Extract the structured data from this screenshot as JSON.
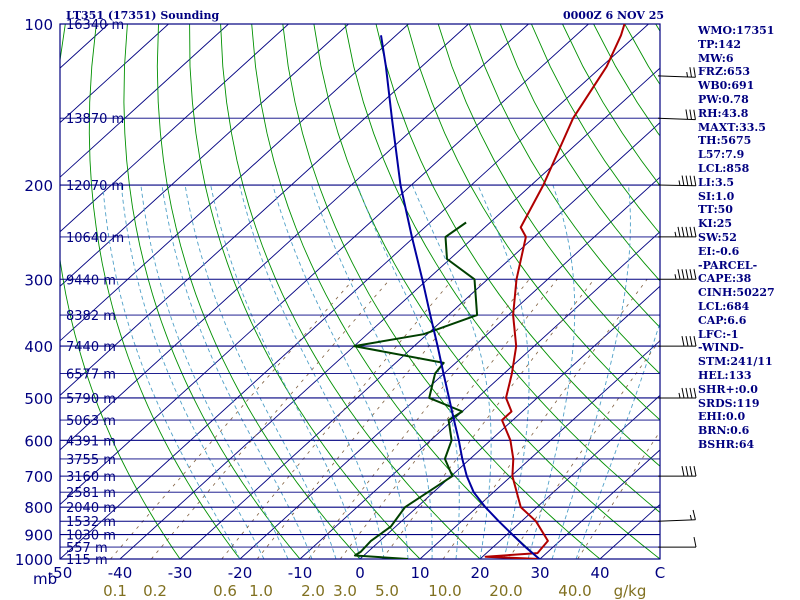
{
  "header": {
    "station": "LT351 (17351) Sounding",
    "datetime": "0000Z  6 NOV 25"
  },
  "stats": [
    "WMO:17351",
    "TP:142",
    "MW:6",
    "FRZ:653",
    "WB0:691",
    "PW:0.78",
    "RH:43.8",
    "MAXT:33.5",
    "TH:5675",
    "L57:7.9",
    "LCL:858",
    "LI:3.5",
    "SI:1.0",
    "TT:50",
    "KI:25",
    "SW:52",
    "EI:-0.6",
    "-PARCEL-",
    "CAPE:38",
    "CINH:50227",
    "LCL:684",
    "CAP:6.6",
    "LFC:-1",
    "-WIND-",
    "STM:241/11",
    "HEL:133",
    "SHR+:0.0",
    "SRDS:119",
    "EHI:0.0",
    "BRN:0.6",
    "BSHR:64"
  ],
  "chart_data": {
    "type": "skew-t",
    "x_unit_label": "mb",
    "mixing_ratio_unit": "g/kg",
    "temperature_ticks": [
      "-50",
      "-40",
      "-30",
      "-20",
      "-10",
      "0",
      "10",
      "20",
      "30",
      "40",
      "C"
    ],
    "temperature_range_c": [
      -50,
      50
    ],
    "mixing_ratio_ticks": [
      "0.1",
      "0.2",
      "0.6",
      "1.0",
      "2.0",
      "3.0",
      "5.0",
      "10.0",
      "20.0",
      "40.0"
    ],
    "pressure_labels": [
      "100",
      "200",
      "300",
      "400",
      "500",
      "600",
      "700",
      "800",
      "900",
      "1000"
    ],
    "pressure_range_mb": [
      100,
      1000
    ],
    "height_levels": [
      {
        "p": 100,
        "label": "16340 m"
      },
      {
        "p": 150,
        "label": "13870 m"
      },
      {
        "p": 200,
        "label": "12070 m"
      },
      {
        "p": 250,
        "label": "10640 m"
      },
      {
        "p": 300,
        "label": "9440 m"
      },
      {
        "p": 350,
        "label": "8382 m"
      },
      {
        "p": 400,
        "label": "7440 m"
      },
      {
        "p": 450,
        "label": "6577 m"
      },
      {
        "p": 500,
        "label": "5790 m"
      },
      {
        "p": 550,
        "label": "5063 m"
      },
      {
        "p": 600,
        "label": "4391 m"
      },
      {
        "p": 650,
        "label": "3755 m"
      },
      {
        "p": 700,
        "label": "3160 m"
      },
      {
        "p": 750,
        "label": "2581 m"
      },
      {
        "p": 800,
        "label": "2040 m"
      },
      {
        "p": 850,
        "label": "1532 m"
      },
      {
        "p": 900,
        "label": "1030 m"
      },
      {
        "p": 950,
        "label": "557 m"
      },
      {
        "p": 1000,
        "label": "115 m"
      }
    ],
    "series": [
      {
        "role": "temperature",
        "color": "#b00000",
        "points": [
          [
            1000,
            29.9
          ],
          [
            990,
            20.5
          ],
          [
            975,
            28.5
          ],
          [
            925,
            28.0
          ],
          [
            850,
            22.4
          ],
          [
            800,
            17.3
          ],
          [
            700,
            10.2
          ],
          [
            650,
            7.2
          ],
          [
            600,
            3.3
          ],
          [
            550,
            -1.8
          ],
          [
            530,
            -1.8
          ],
          [
            500,
            -5.2
          ],
          [
            450,
            -8.7
          ],
          [
            400,
            -13.0
          ],
          [
            350,
            -19.2
          ],
          [
            300,
            -25.2
          ],
          [
            250,
            -31.4
          ],
          [
            240,
            -34.0
          ],
          [
            200,
            -38.0
          ],
          [
            150,
            -45.3
          ],
          [
            120,
            -49.2
          ],
          [
            105,
            -52.5
          ],
          [
            100,
            -54.0
          ]
        ]
      },
      {
        "role": "dewpoint",
        "color": "#004000",
        "points": [
          [
            1000,
            8.0
          ],
          [
            985,
            -1.5
          ],
          [
            970,
            -1.2
          ],
          [
            925,
            -1.5
          ],
          [
            870,
            -0.8
          ],
          [
            800,
            -2.0
          ],
          [
            700,
            0.2
          ],
          [
            650,
            -4.2
          ],
          [
            600,
            -6.5
          ],
          [
            550,
            -10.7
          ],
          [
            530,
            -10.0
          ],
          [
            500,
            -18.0
          ],
          [
            450,
            -21.5
          ],
          [
            430,
            -22.0
          ],
          [
            400,
            -40.0
          ],
          [
            380,
            -30.6
          ],
          [
            350,
            -25.2
          ],
          [
            300,
            -32.2
          ],
          [
            275,
            -40.5
          ],
          [
            250,
            -44.8
          ],
          [
            235,
            -44.0
          ]
        ]
      },
      {
        "role": "parcel",
        "color": "#0000a0",
        "points": [
          [
            1000,
            29.9
          ],
          [
            950,
            25.4
          ],
          [
            900,
            20.9
          ],
          [
            850,
            16.2
          ],
          [
            800,
            11.4
          ],
          [
            750,
            6.7
          ],
          [
            700,
            2.6
          ],
          [
            650,
            -1.3
          ],
          [
            600,
            -5.3
          ],
          [
            550,
            -9.8
          ],
          [
            500,
            -14.7
          ],
          [
            450,
            -20.1
          ],
          [
            400,
            -26.1
          ],
          [
            350,
            -33.0
          ],
          [
            300,
            -40.9
          ],
          [
            250,
            -50.4
          ],
          [
            200,
            -61.8
          ],
          [
            150,
            -75.5
          ],
          [
            120,
            -86.0
          ],
          [
            105,
            -92.5
          ]
        ]
      }
    ],
    "wind_barbs": [
      {
        "p": 950,
        "dir": 250,
        "kt": 10
      },
      {
        "p": 850,
        "dir": 260,
        "kt": 15
      },
      {
        "p": 700,
        "dir": 250,
        "kt": 40
      },
      {
        "p": 500,
        "dir": 250,
        "kt": 45
      },
      {
        "p": 400,
        "dir": 250,
        "kt": 40
      },
      {
        "p": 300,
        "dir": 250,
        "kt": 55
      },
      {
        "p": 250,
        "dir": 250,
        "kt": 55
      },
      {
        "p": 200,
        "dir": 245,
        "kt": 45
      },
      {
        "p": 150,
        "dir": 240,
        "kt": 30
      },
      {
        "p": 125,
        "dir": 240,
        "kt": 25
      }
    ],
    "colors": {
      "isobar": "#000080",
      "isotherm": "#000080",
      "dry_adiabat": "#009000",
      "moist_adiabat": "#4fa0c8",
      "mixing_ratio": "#806040",
      "text": "#000080",
      "bottom_labels": "#807020"
    }
  }
}
